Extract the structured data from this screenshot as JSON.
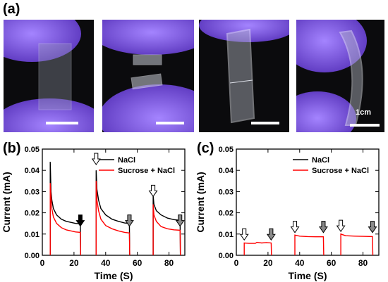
{
  "panels": {
    "a_label": "(a)",
    "b_label": "(b)",
    "c_label": "(c)"
  },
  "photos": {
    "scale_label": "1cm"
  },
  "colors": {
    "nacl": "#000000",
    "sucrose_nacl": "#ff0000",
    "arrow_open": "#ffffff",
    "arrow_grey": "#8a8a8a",
    "arrow_black": "#000000",
    "glove": "#7a5ad8"
  },
  "chart_data": [
    {
      "panel": "(b)",
      "type": "line",
      "xlabel": "Time (S)",
      "ylabel": "Current (mA)",
      "xlim": [
        0,
        90
      ],
      "ylim": [
        0,
        0.05
      ],
      "xticks": [
        0,
        20,
        40,
        60,
        80
      ],
      "yticks": [
        0.0,
        0.01,
        0.02,
        0.03,
        0.04,
        0.05
      ],
      "ytick_labels": [
        "0.00",
        "0.01",
        "0.02",
        "0.03",
        "0.04",
        "0.05"
      ],
      "legend": "top-right",
      "series": [
        {
          "name": "NaCl",
          "color": "#000000",
          "segments": [
            [
              [
                5,
                0
              ],
              [
                5,
                0.044
              ],
              [
                5.5,
                0.03
              ],
              [
                6,
                0.026
              ],
              [
                7,
                0.022
              ],
              [
                9,
                0.019
              ],
              [
                12,
                0.017
              ],
              [
                15,
                0.016
              ],
              [
                18,
                0.0155
              ],
              [
                21,
                0.015
              ],
              [
                24,
                0.0148
              ],
              [
                24.2,
                0
              ]
            ],
            [
              [
                34,
                0
              ],
              [
                34,
                0.04
              ],
              [
                34.5,
                0.031
              ],
              [
                35.5,
                0.026
              ],
              [
                37,
                0.022
              ],
              [
                40,
                0.019
              ],
              [
                44,
                0.017
              ],
              [
                48,
                0.016
              ],
              [
                52,
                0.0152
              ],
              [
                55,
                0.015
              ],
              [
                55.2,
                0
              ]
            ],
            [
              [
                70,
                0
              ],
              [
                70,
                0.028
              ],
              [
                70.5,
                0.024
              ],
              [
                72,
                0.021
              ],
              [
                75,
                0.019
              ],
              [
                79,
                0.0175
              ],
              [
                83,
                0.0168
              ],
              [
                87,
                0.0165
              ],
              [
                87.2,
                0
              ]
            ]
          ]
        },
        {
          "name": "Sucrose + NaCl",
          "color": "#ff0000",
          "segments": [
            [
              [
                5,
                0
              ],
              [
                5,
                0.034
              ],
              [
                5.5,
                0.027
              ],
              [
                6,
                0.022
              ],
              [
                7,
                0.018
              ],
              [
                9,
                0.015
              ],
              [
                12,
                0.013
              ],
              [
                15,
                0.012
              ],
              [
                18,
                0.0115
              ],
              [
                21,
                0.011
              ],
              [
                24,
                0.0108
              ],
              [
                24.2,
                0
              ]
            ],
            [
              [
                34,
                0
              ],
              [
                34,
                0.035
              ],
              [
                34.5,
                0.026
              ],
              [
                35.5,
                0.021
              ],
              [
                37,
                0.017
              ],
              [
                40,
                0.014
              ],
              [
                44,
                0.0125
              ],
              [
                48,
                0.0115
              ],
              [
                52,
                0.0108
              ],
              [
                55,
                0.0105
              ],
              [
                55.2,
                0
              ]
            ],
            [
              [
                70,
                0
              ],
              [
                70,
                0.024
              ],
              [
                70.5,
                0.019
              ],
              [
                72,
                0.016
              ],
              [
                75,
                0.0135
              ],
              [
                79,
                0.0125
              ],
              [
                83,
                0.012
              ],
              [
                87,
                0.0118
              ],
              [
                87.2,
                0
              ]
            ]
          ]
        }
      ],
      "arrows": [
        {
          "x": 24,
          "y": 0.019,
          "style": "black"
        },
        {
          "x": 34,
          "y": 0.048,
          "style": "open"
        },
        {
          "x": 55,
          "y": 0.019,
          "style": "grey"
        },
        {
          "x": 70,
          "y": 0.033,
          "style": "open"
        },
        {
          "x": 87,
          "y": 0.019,
          "style": "grey"
        }
      ]
    },
    {
      "panel": "(c)",
      "type": "line",
      "xlabel": "Time (S)",
      "ylabel": "Current (mA)",
      "xlim": [
        0,
        90
      ],
      "ylim": [
        0,
        0.05
      ],
      "xticks": [
        0,
        20,
        40,
        60,
        80
      ],
      "yticks": [
        0.0,
        0.01,
        0.02,
        0.03,
        0.04,
        0.05
      ],
      "ytick_labels": [
        "0.00",
        "0.01",
        "0.02",
        "0.03",
        "0.04",
        "0.05"
      ],
      "legend": "top-right",
      "series": [
        {
          "name": "NaCl",
          "color": "#000000",
          "segments": []
        },
        {
          "name": "Sucrose + NaCl",
          "color": "#ff0000",
          "segments": [
            [
              [
                5,
                0
              ],
              [
                5,
                0.0058
              ],
              [
                8,
                0.0056
              ],
              [
                12,
                0.0056
              ],
              [
                13,
                0.0061
              ],
              [
                16,
                0.0058
              ],
              [
                19,
                0.006
              ],
              [
                22,
                0.0058
              ],
              [
                22.2,
                0
              ]
            ],
            [
              [
                37,
                0
              ],
              [
                37,
                0.0095
              ],
              [
                40,
                0.009
              ],
              [
                45,
                0.0088
              ],
              [
                50,
                0.0087
              ],
              [
                55,
                0.0087
              ],
              [
                55.2,
                0
              ]
            ],
            [
              [
                66,
                0
              ],
              [
                66,
                0.01
              ],
              [
                69,
                0.0092
              ],
              [
                75,
                0.009
              ],
              [
                80,
                0.0089
              ],
              [
                86,
                0.0088
              ],
              [
                86.2,
                0
              ]
            ]
          ]
        }
      ],
      "arrows": [
        {
          "x": 5,
          "y": 0.0125,
          "style": "open"
        },
        {
          "x": 22,
          "y": 0.0125,
          "style": "grey"
        },
        {
          "x": 37,
          "y": 0.016,
          "style": "open"
        },
        {
          "x": 55,
          "y": 0.016,
          "style": "grey"
        },
        {
          "x": 66,
          "y": 0.0165,
          "style": "open"
        },
        {
          "x": 86,
          "y": 0.016,
          "style": "grey"
        }
      ]
    }
  ]
}
